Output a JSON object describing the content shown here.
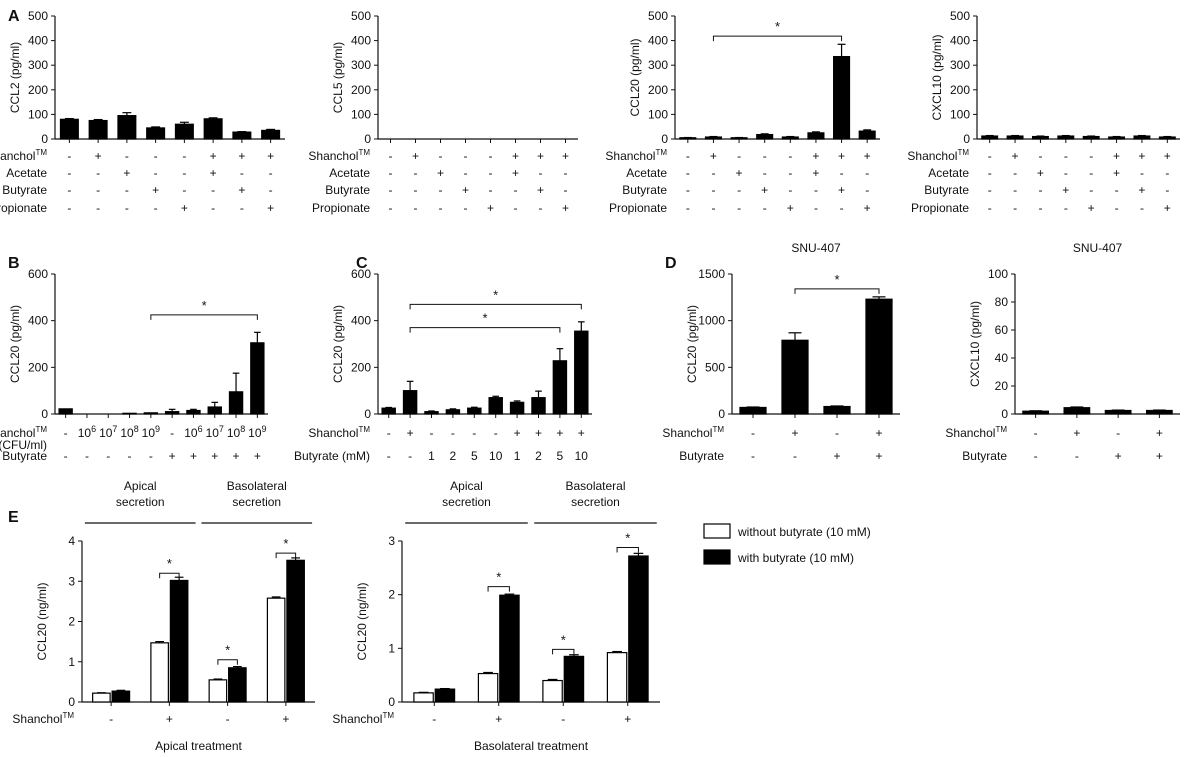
{
  "colors": {
    "filled": "#000000",
    "open": "#ffffff",
    "axis": "#111111"
  },
  "panel_labels": [
    "A",
    "B",
    "C",
    "D",
    "E"
  ],
  "legend": {
    "items": [
      "without butyrate (10 mM)",
      "with butyrate (10 mM)"
    ]
  },
  "chart_data": [
    {
      "id": "A1",
      "panel": "A",
      "type": "bar",
      "title": "",
      "ylabel": "CCL2 (pg/ml)",
      "ylim": [
        0,
        500
      ],
      "yticks": [
        "0",
        "100",
        "200",
        "300",
        "400",
        "500"
      ],
      "categories": [
        "1",
        "2",
        "3",
        "4",
        "5",
        "6",
        "7",
        "8"
      ],
      "series": [
        {
          "name": "CCL2",
          "style": "filled",
          "values": [
            80,
            75,
            95,
            45,
            60,
            82,
            28,
            35
          ],
          "errors": [
            3,
            4,
            12,
            4,
            8,
            4,
            2,
            4
          ]
        }
      ],
      "rows": [
        {
          "label": "Shanchol",
          "sup": "TM",
          "marks": [
            "-",
            "+",
            "-",
            "-",
            "-",
            "+",
            "+",
            "+"
          ]
        },
        {
          "label": "Acetate",
          "sup": "",
          "marks": [
            "-",
            "-",
            "+",
            "-",
            "-",
            "+",
            "-",
            "-"
          ]
        },
        {
          "label": "Butyrate",
          "sup": "",
          "marks": [
            "-",
            "-",
            "-",
            "+",
            "-",
            "-",
            "+",
            "-"
          ]
        },
        {
          "label": "Propionate",
          "sup": "",
          "marks": [
            "-",
            "-",
            "-",
            "-",
            "+",
            "-",
            "-",
            "+"
          ]
        }
      ],
      "brackets": []
    },
    {
      "id": "A2",
      "panel": "",
      "type": "bar",
      "title": "",
      "ylabel": "CCL5 (pg/ml)",
      "ylim": [
        0,
        500
      ],
      "yticks": [
        "0",
        "100",
        "200",
        "300",
        "400",
        "500"
      ],
      "categories": [
        "1",
        "2",
        "3",
        "4",
        "5",
        "6",
        "7",
        "8"
      ],
      "series": [
        {
          "name": "CCL5",
          "style": "filled",
          "values": [
            0,
            0,
            0,
            0,
            0,
            0,
            0,
            0
          ],
          "errors": [
            0,
            0,
            0,
            0,
            0,
            0,
            0,
            0
          ]
        }
      ],
      "rows": [
        {
          "label": "Shanchol",
          "sup": "TM",
          "marks": [
            "-",
            "+",
            "-",
            "-",
            "-",
            "+",
            "+",
            "+"
          ]
        },
        {
          "label": "Acetate",
          "sup": "",
          "marks": [
            "-",
            "-",
            "+",
            "-",
            "-",
            "+",
            "-",
            "-"
          ]
        },
        {
          "label": "Butyrate",
          "sup": "",
          "marks": [
            "-",
            "-",
            "-",
            "+",
            "-",
            "-",
            "+",
            "-"
          ]
        },
        {
          "label": "Propionate",
          "sup": "",
          "marks": [
            "-",
            "-",
            "-",
            "-",
            "+",
            "-",
            "-",
            "+"
          ]
        }
      ],
      "brackets": []
    },
    {
      "id": "A3",
      "panel": "",
      "type": "bar",
      "title": "",
      "ylabel": "CCL20 (pg/ml)",
      "ylim": [
        0,
        500
      ],
      "yticks": [
        "0",
        "100",
        "200",
        "300",
        "400",
        "500"
      ],
      "categories": [
        "1",
        "2",
        "3",
        "4",
        "5",
        "6",
        "7",
        "8"
      ],
      "series": [
        {
          "name": "CCL20",
          "style": "filled",
          "values": [
            5,
            8,
            5,
            18,
            8,
            25,
            335,
            32
          ],
          "errors": [
            1,
            2,
            1,
            3,
            2,
            4,
            50,
            5
          ]
        }
      ],
      "rows": [
        {
          "label": "Shanchol",
          "sup": "TM",
          "marks": [
            "-",
            "+",
            "-",
            "-",
            "-",
            "+",
            "+",
            "+"
          ]
        },
        {
          "label": "Acetate",
          "sup": "",
          "marks": [
            "-",
            "-",
            "+",
            "-",
            "-",
            "+",
            "-",
            "-"
          ]
        },
        {
          "label": "Butyrate",
          "sup": "",
          "marks": [
            "-",
            "-",
            "-",
            "+",
            "-",
            "-",
            "+",
            "-"
          ]
        },
        {
          "label": "Propionate",
          "sup": "",
          "marks": [
            "-",
            "-",
            "-",
            "-",
            "+",
            "-",
            "-",
            "+"
          ]
        }
      ],
      "brackets": [
        {
          "from": 1,
          "to": 6,
          "y": 418,
          "label": "*"
        }
      ]
    },
    {
      "id": "A4",
      "panel": "",
      "type": "bar",
      "title": "",
      "ylabel": "CXCL10 (pg/ml)",
      "ylim": [
        0,
        500
      ],
      "yticks": [
        "0",
        "100",
        "200",
        "300",
        "400",
        "500"
      ],
      "categories": [
        "1",
        "2",
        "3",
        "4",
        "5",
        "6",
        "7",
        "8"
      ],
      "series": [
        {
          "name": "CXCL10",
          "style": "filled",
          "values": [
            12,
            12,
            10,
            12,
            10,
            8,
            12,
            8
          ],
          "errors": [
            2,
            2,
            2,
            2,
            2,
            2,
            2,
            2
          ]
        }
      ],
      "rows": [
        {
          "label": "Shanchol",
          "sup": "TM",
          "marks": [
            "-",
            "+",
            "-",
            "-",
            "-",
            "+",
            "+",
            "+"
          ]
        },
        {
          "label": "Acetate",
          "sup": "",
          "marks": [
            "-",
            "-",
            "+",
            "-",
            "-",
            "+",
            "-",
            "-"
          ]
        },
        {
          "label": "Butyrate",
          "sup": "",
          "marks": [
            "-",
            "-",
            "-",
            "+",
            "-",
            "-",
            "+",
            "-"
          ]
        },
        {
          "label": "Propionate",
          "sup": "",
          "marks": [
            "-",
            "-",
            "-",
            "-",
            "+",
            "-",
            "-",
            "+"
          ]
        }
      ],
      "brackets": []
    },
    {
      "id": "B",
      "panel": "B",
      "type": "bar",
      "title": "",
      "ylabel": "CCL20 (pg/ml)",
      "ylim": [
        0,
        600
      ],
      "yticks": [
        "0",
        "200",
        "400",
        "600"
      ],
      "categories": [
        "1",
        "2",
        "3",
        "4",
        "5",
        "6",
        "7",
        "8",
        "9",
        "10"
      ],
      "series": [
        {
          "name": "CCL20",
          "style": "filled",
          "values": [
            22,
            0,
            0,
            3,
            5,
            10,
            15,
            30,
            95,
            305
          ],
          "errors": [
            0,
            0,
            0,
            0,
            0,
            10,
            5,
            20,
            80,
            45
          ]
        }
      ],
      "rows": [
        {
          "label": "Shanchol",
          "sup": "TM",
          "label2": "(CFU/ml)",
          "marks": [
            "-",
            "10^6",
            "10^7",
            "10^8",
            "10^9",
            "-",
            "10^6",
            "10^7",
            "10^8",
            "10^9"
          ]
        },
        {
          "label": "Butyrate",
          "sup": "",
          "marks": [
            "-",
            "-",
            "-",
            "-",
            "-",
            "+",
            "+",
            "+",
            "+",
            "+"
          ]
        }
      ],
      "brackets": [
        {
          "from": 4,
          "to": 9,
          "y": 425,
          "label": "*"
        }
      ]
    },
    {
      "id": "C",
      "panel": "C",
      "type": "bar",
      "title": "",
      "ylabel": "CCL20 (pg/ml)",
      "ylim": [
        0,
        600
      ],
      "yticks": [
        "0",
        "200",
        "400",
        "600"
      ],
      "categories": [
        "1",
        "2",
        "3",
        "4",
        "5",
        "6",
        "7",
        "8",
        "9",
        "10"
      ],
      "series": [
        {
          "name": "CCL20",
          "style": "filled",
          "values": [
            25,
            100,
            10,
            18,
            25,
            70,
            50,
            70,
            228,
            355
          ],
          "errors": [
            3,
            40,
            3,
            4,
            4,
            6,
            6,
            28,
            52,
            40
          ]
        }
      ],
      "rows": [
        {
          "label": "Shanchol",
          "sup": "TM",
          "marks": [
            "-",
            "+",
            "-",
            "-",
            "-",
            "-",
            "+",
            "+",
            "+",
            "+"
          ]
        },
        {
          "label": "Butyrate (mM)",
          "sup": "",
          "marks": [
            "-",
            "-",
            "1",
            "2",
            "5",
            "10",
            "1",
            "2",
            "5",
            "10"
          ]
        }
      ],
      "brackets": [
        {
          "from": 1,
          "to": 9,
          "y": 470,
          "label": "*"
        },
        {
          "from": 1,
          "to": 8,
          "y": 370,
          "label": "*"
        }
      ]
    },
    {
      "id": "D1",
      "panel": "D",
      "type": "bar",
      "title": "SNU-407",
      "ylabel": "CCL20 (pg/ml)",
      "ylim": [
        0,
        1500
      ],
      "yticks": [
        "0",
        "500",
        "1000",
        "1500"
      ],
      "categories": [
        "1",
        "2",
        "3",
        "4"
      ],
      "series": [
        {
          "name": "CCL20",
          "style": "filled",
          "values": [
            70,
            790,
            80,
            1230
          ],
          "errors": [
            5,
            80,
            6,
            25
          ]
        }
      ],
      "rows": [
        {
          "label": "Shanchol",
          "sup": "TM",
          "marks": [
            "-",
            "+",
            "-",
            "+"
          ]
        },
        {
          "label": "Butyrate",
          "sup": "",
          "marks": [
            "-",
            "-",
            "+",
            "+"
          ]
        }
      ],
      "brackets": [
        {
          "from": 1,
          "to": 3,
          "y": 1340,
          "label": "*"
        }
      ]
    },
    {
      "id": "D2",
      "panel": "",
      "type": "bar",
      "title": "SNU-407",
      "ylabel": "CXCL10 (pg/ml)",
      "ylim": [
        0,
        100
      ],
      "yticks": [
        "0",
        "20",
        "40",
        "60",
        "80",
        "100"
      ],
      "categories": [
        "1",
        "2",
        "3",
        "4"
      ],
      "series": [
        {
          "name": "CXCL10",
          "style": "filled",
          "values": [
            2,
            4.5,
            2.5,
            2.5
          ],
          "errors": [
            0.3,
            0.5,
            0.3,
            0.3
          ]
        }
      ],
      "rows": [
        {
          "label": "Shanchol",
          "sup": "TM",
          "marks": [
            "-",
            "+",
            "-",
            "+"
          ]
        },
        {
          "label": "Butyrate",
          "sup": "",
          "marks": [
            "-",
            "-",
            "+",
            "+"
          ]
        }
      ],
      "brackets": []
    },
    {
      "id": "E1",
      "panel": "E",
      "type": "bar",
      "title": "",
      "xlabel": "Apical treatment",
      "ylabel": "CCL20 (ng/ml)",
      "ylim": [
        0,
        4
      ],
      "yticks": [
        "0",
        "1",
        "2",
        "3",
        "4"
      ],
      "categories": [
        "1",
        "2",
        "3",
        "4"
      ],
      "series": [
        {
          "name": "without butyrate (10 mM)",
          "style": "open",
          "values": [
            0.22,
            1.47,
            0.55,
            2.58
          ],
          "errors": [
            0.01,
            0.03,
            0.02,
            0.03
          ]
        },
        {
          "name": "with butyrate (10 mM)",
          "style": "filled",
          "values": [
            0.27,
            3.02,
            0.85,
            3.52
          ],
          "errors": [
            0.02,
            0.08,
            0.03,
            0.06
          ]
        }
      ],
      "rows": [
        {
          "label": "Shanchol",
          "sup": "TM",
          "marks": [
            "-",
            "+",
            "-",
            "+"
          ]
        }
      ],
      "headers": [
        {
          "l1": "Apical",
          "l2": "secretion",
          "from": 0,
          "to": 1
        },
        {
          "l1": "Basolateral",
          "l2": "secretion",
          "from": 2,
          "to": 3
        }
      ],
      "pair_brackets": [
        {
          "group": 1,
          "y": 3.2,
          "label": "*"
        },
        {
          "group": 2,
          "y": 1.05,
          "label": "*"
        },
        {
          "group": 3,
          "y": 3.7,
          "label": "*"
        }
      ]
    },
    {
      "id": "E2",
      "panel": "",
      "type": "bar",
      "title": "",
      "xlabel": "Basolateral treatment",
      "ylabel": "CCL20 (ng/ml)",
      "ylim": [
        0,
        3
      ],
      "yticks": [
        "0",
        "1",
        "2",
        "3"
      ],
      "categories": [
        "1",
        "2",
        "3",
        "4"
      ],
      "series": [
        {
          "name": "without butyrate (10 mM)",
          "style": "open",
          "values": [
            0.17,
            0.53,
            0.4,
            0.92
          ],
          "errors": [
            0.01,
            0.02,
            0.02,
            0.02
          ]
        },
        {
          "name": "with butyrate (10 mM)",
          "style": "filled",
          "values": [
            0.24,
            1.99,
            0.85,
            2.72
          ],
          "errors": [
            0.01,
            0.02,
            0.03,
            0.05
          ]
        }
      ],
      "rows": [
        {
          "label": "Shanchol",
          "sup": "TM",
          "marks": [
            "-",
            "+",
            "-",
            "+"
          ]
        }
      ],
      "headers": [
        {
          "l1": "Apical",
          "l2": "secretion",
          "from": 0,
          "to": 1
        },
        {
          "l1": "Basolateral",
          "l2": "secretion",
          "from": 2,
          "to": 3
        }
      ],
      "pair_brackets": [
        {
          "group": 1,
          "y": 2.15,
          "label": "*"
        },
        {
          "group": 2,
          "y": 0.98,
          "label": "*"
        },
        {
          "group": 3,
          "y": 2.88,
          "label": "*"
        }
      ]
    }
  ]
}
